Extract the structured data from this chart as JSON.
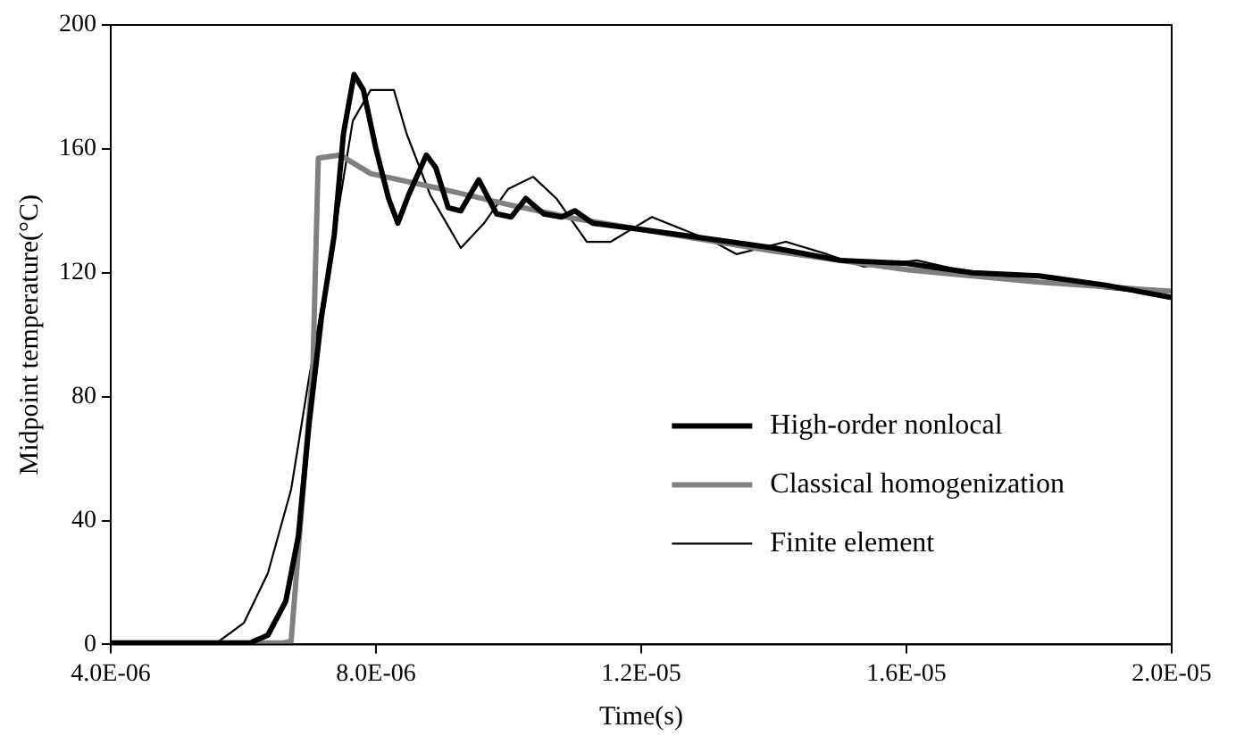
{
  "chart_data": {
    "type": "line",
    "xlabel": "Time(s)",
    "ylabel": "Midpoint temperature(°C)",
    "xlim": [
      4e-06,
      2e-05
    ],
    "xticks": [
      {
        "value": 4e-06,
        "label": "4.0E-06"
      },
      {
        "value": 8e-06,
        "label": "8.0E-06"
      },
      {
        "value": 1.2e-05,
        "label": "1.2E-05"
      },
      {
        "value": 1.6e-05,
        "label": "1.6E-05"
      },
      {
        "value": 2e-05,
        "label": "2.0E-05"
      }
    ],
    "ylim": [
      0,
      200
    ],
    "yticks": [
      0,
      40,
      80,
      120,
      160,
      200
    ],
    "grid": false,
    "legend": "bottom right",
    "marker": "none",
    "line_style": "solid",
    "series": [
      {
        "name": "High-order nonlocal",
        "color": "#000000",
        "x": [
          4e-06,
          5e-06,
          6.1e-06,
          6.37e-06,
          6.64e-06,
          6.83e-06,
          6.99e-06,
          7.18e-06,
          7.37e-06,
          7.51e-06,
          7.67e-06,
          7.81e-06,
          8e-06,
          8.19e-06,
          8.33e-06,
          8.49e-06,
          8.76e-06,
          8.9e-06,
          9.09e-06,
          9.28e-06,
          9.55e-06,
          9.82e-06,
          1.004e-05,
          1.026e-05,
          1.053e-05,
          1.08e-05,
          1.1e-05,
          1.127e-05,
          1.2e-05,
          1.3e-05,
          1.4e-05,
          1.5e-05,
          1.6e-05,
          1.7e-05,
          1.8e-05,
          1.9e-05,
          2e-05
        ],
        "values": [
          0.5,
          0.5,
          0.5,
          3,
          14,
          35,
          71,
          106,
          132,
          165,
          184,
          179,
          160,
          144,
          136,
          145,
          158,
          154,
          141,
          140,
          150,
          139,
          138,
          144,
          139,
          138,
          140,
          136,
          134,
          131,
          128,
          124,
          123,
          120,
          119,
          116,
          112
        ]
      },
      {
        "name": "Classical homogenization",
        "color": "#808080",
        "x": [
          4e-06,
          5e-06,
          6.6e-06,
          6.72e-06,
          7.05e-06,
          7.13e-06,
          7.46e-06,
          7.92e-06,
          9e-06,
          1e-05,
          1.1e-05,
          1.2e-05,
          1.4e-05,
          1.6e-05,
          1.8e-05,
          2e-05
        ],
        "values": [
          0.5,
          0.5,
          0.5,
          1,
          90,
          157,
          158,
          152,
          147,
          142,
          137.5,
          134,
          127,
          121,
          117,
          114
        ]
      },
      {
        "name": "Finite element",
        "color": "#000000",
        "x": [
          4e-06,
          5e-06,
          5.63e-06,
          6.01e-06,
          6.37e-06,
          6.72e-06,
          6.99e-06,
          7.37e-06,
          7.65e-06,
          7.92e-06,
          8.27e-06,
          8.46e-06,
          8.82e-06,
          9.28e-06,
          9.63e-06,
          9.99e-06,
          1.037e-05,
          1.072e-05,
          1.118e-05,
          1.154e-05,
          1.216e-05,
          1.309e-05,
          1.344e-05,
          1.418e-05,
          1.48e-05,
          1.535e-05,
          1.616e-05,
          1.698e-05,
          1.788e-05,
          1.897e-05,
          1.99e-05
        ],
        "values": [
          0.5,
          0.5,
          1,
          7,
          23,
          50,
          86,
          132,
          169,
          179,
          179,
          165,
          145,
          128,
          136,
          147,
          151,
          144,
          130,
          130,
          138,
          130,
          126,
          130,
          126,
          122,
          124,
          120,
          119,
          115,
          113
        ]
      }
    ]
  }
}
